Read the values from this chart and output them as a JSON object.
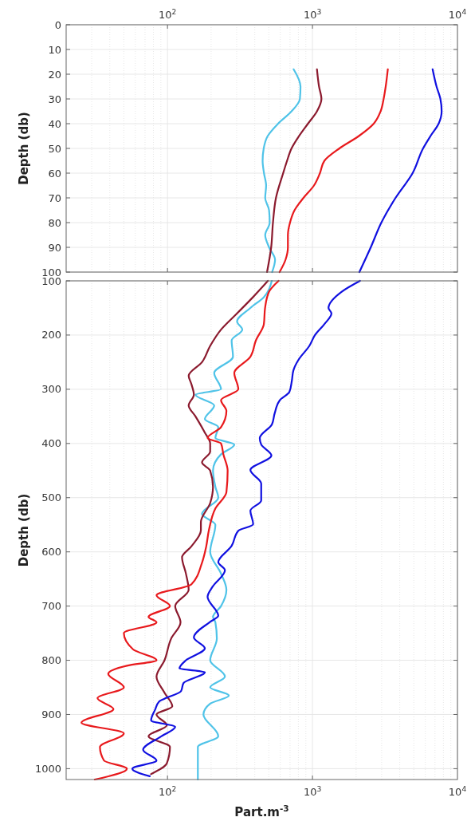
{
  "chart_data": [
    {
      "type": "line",
      "ylabel": "Depth (db)",
      "log": "x",
      "grid": true,
      "line_style": "solid",
      "marker": "none",
      "xlim": [
        20,
        10000
      ],
      "xticks": [
        {
          "value": 100,
          "label": "10$^{2}$"
        },
        {
          "value": 1000,
          "label": "10$^{3}$"
        },
        {
          "value": 10000,
          "label": "10$^{4}$"
        }
      ],
      "ylim": [
        100,
        0
      ],
      "yticks": [
        0,
        10,
        20,
        30,
        40,
        50,
        60,
        70,
        80,
        90,
        100
      ],
      "series": [
        {
          "color": "#4fc3e8",
          "x": [
            741,
            827,
            819,
            717,
            579,
            491,
            461,
            453,
            463,
            479,
            472,
            502,
            507,
            472,
            502,
            552,
            527
          ],
          "values": [
            18,
            25,
            30,
            35,
            40,
            45,
            50,
            55,
            60,
            65,
            70,
            75,
            80,
            85,
            90,
            95,
            100
          ]
        },
        {
          "color": "#8b1a2e",
          "x": [
            1074,
            1110,
            1153,
            1074,
            931,
            808,
            717,
            668,
            628,
            560,
            534,
            519,
            486
          ],
          "values": [
            18,
            25,
            30,
            35,
            40,
            45,
            50,
            55,
            60,
            70,
            80,
            90,
            100
          ]
        },
        {
          "color": "#e8191c",
          "x": [
            3309,
            3199,
            3096,
            2952,
            2645,
            2088,
            1534,
            1209,
            1126,
            1024,
            867,
            752,
            700,
            677,
            677,
            652,
            593
          ],
          "values": [
            18,
            25,
            30,
            35,
            40,
            45,
            50,
            55,
            60,
            65,
            70,
            75,
            80,
            85,
            90,
            95,
            100
          ]
        },
        {
          "color": "#1010e0",
          "x": [
            6739,
            7175,
            7627,
            7780,
            7417,
            6518,
            5793,
            4907,
            3741,
            2986,
            2524,
            2106
          ],
          "values": [
            18,
            25,
            30,
            35,
            40,
            45,
            50,
            60,
            70,
            80,
            90,
            100
          ]
        }
      ]
    },
    {
      "type": "line",
      "xlabel": "Part.m$^{-3}$",
      "ylabel": "Depth (db)",
      "log": "x",
      "grid": true,
      "line_style": "solid",
      "marker": "none",
      "xlim": [
        20,
        10000
      ],
      "xticks": [
        {
          "value": 100,
          "label": "10$^{2}$"
        },
        {
          "value": 1000,
          "label": "10$^{3}$"
        },
        {
          "value": 10000,
          "label": "10$^{4}$"
        }
      ],
      "ylim": [
        1020,
        100
      ],
      "yticks": [
        100,
        200,
        300,
        400,
        500,
        600,
        700,
        800,
        900,
        1000
      ],
      "series": [
        {
          "color": "#4fc3e8",
          "x": [
            524,
            462,
            373,
            302,
            328,
            277,
            283,
            210,
            234,
            156,
            210,
            181,
            224,
            214,
            289,
            234,
            206,
            214,
            224,
            173,
            214,
            197,
            234,
            255,
            234,
            206,
            214,
            219,
            197,
            249,
            197,
            265,
            197,
            177,
            224,
            162,
            162,
            162
          ],
          "values": [
            100,
            130,
            150,
            175,
            190,
            210,
            240,
            270,
            300,
            310,
            330,
            355,
            370,
            390,
            402,
            420,
            450,
            480,
            500,
            530,
            550,
            600,
            640,
            670,
            700,
            720,
            730,
            760,
            800,
            830,
            850,
            865,
            880,
            900,
            940,
            960,
            1000,
            1020
          ]
        },
        {
          "color": "#8b1a2e",
          "x": [
            493,
            389,
            302,
            234,
            197,
            173,
            140,
            146,
            152,
            140,
            156,
            181,
            197,
            197,
            173,
            197,
            206,
            197,
            170,
            170,
            146,
            126,
            134,
            140,
            113,
            123,
            106,
            95.4,
            84,
            95.4,
            108,
            84,
            99,
            74,
            104,
            99,
            77
          ],
          "values": [
            100,
            130,
            160,
            190,
            220,
            250,
            275,
            290,
            310,
            330,
            350,
            380,
            400,
            415,
            435,
            450,
            480,
            510,
            545,
            560,
            590,
            610,
            640,
            670,
            700,
            730,
            760,
            800,
            830,
            860,
            885,
            900,
            920,
            940,
            960,
            990,
            1010
          ]
        },
        {
          "color": "#e8191c",
          "x": [
            584,
            502,
            471,
            462,
            407,
            373,
            289,
            308,
            234,
            255,
            234,
            189,
            234,
            243,
            260,
            255,
            214,
            193,
            185,
            173,
            146,
            84,
            104,
            74,
            84,
            50,
            58,
            84,
            52.5,
            39,
            50,
            32.9,
            42.4,
            25.5,
            50,
            34.2,
            36.5,
            52.5,
            31.5
          ],
          "values": [
            100,
            120,
            150,
            180,
            210,
            240,
            270,
            300,
            320,
            340,
            370,
            390,
            400,
            420,
            450,
            490,
            520,
            560,
            590,
            620,
            660,
            680,
            700,
            720,
            730,
            750,
            780,
            800,
            810,
            825,
            850,
            870,
            890,
            915,
            935,
            960,
            985,
            1000,
            1020
          ]
        },
        {
          "color": "#1010e0",
          "x": [
            2128,
            1592,
            1290,
            1352,
            1207,
            1041,
            952,
            804,
            739,
            720,
            693,
            596,
            548,
            525,
            433,
            443,
            521,
            373,
            443,
            443,
            373,
            390,
            308,
            277,
            224,
            249,
            205,
            189,
            224,
            197,
            152,
            181,
            134,
            121,
            181,
            129,
            124,
            95.4,
            87.6,
            82.2,
            77.1,
            113,
            91,
            67.9,
            84,
            57.2,
            75.5
          ],
          "values": [
            100,
            120,
            150,
            160,
            180,
            200,
            220,
            245,
            265,
            285,
            305,
            320,
            345,
            365,
            390,
            402,
            422,
            449,
            474,
            505,
            524,
            549,
            561,
            589,
            619,
            634,
            664,
            683,
            718,
            729,
            758,
            778,
            800,
            815,
            822,
            842,
            857,
            871,
            876,
            891,
            911,
            923,
            940,
            965,
            985,
            1000,
            1014
          ]
        }
      ]
    }
  ]
}
